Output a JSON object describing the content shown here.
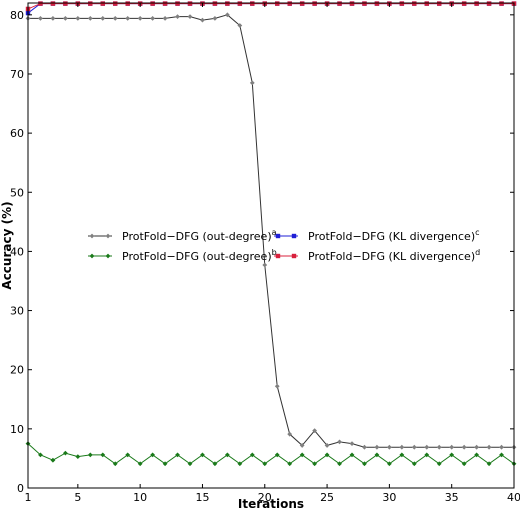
{
  "chart_data": {
    "type": "line",
    "xlabel": "Iterations",
    "ylabel": "Accuracy (%)",
    "xlim": [
      1,
      40
    ],
    "ylim": [
      0,
      82
    ],
    "xticks": [
      1,
      5,
      10,
      15,
      20,
      25,
      30,
      35,
      40
    ],
    "yticks": [
      0,
      10,
      20,
      30,
      40,
      50,
      60,
      70,
      80
    ],
    "grid": false,
    "legend_position": "center",
    "x": [
      1,
      2,
      3,
      4,
      5,
      6,
      7,
      8,
      9,
      10,
      11,
      12,
      13,
      14,
      15,
      16,
      17,
      18,
      19,
      20,
      21,
      22,
      23,
      24,
      25,
      26,
      27,
      28,
      29,
      30,
      31,
      32,
      33,
      34,
      35,
      36,
      37,
      38,
      39,
      40
    ],
    "series": [
      {
        "name": "ProtFold−DFG (out-degree)",
        "sup": "a",
        "color": "#808080",
        "line_color": "#333333",
        "marker": "diamond",
        "values": [
          79.4,
          79.4,
          79.4,
          79.4,
          79.4,
          79.4,
          79.4,
          79.4,
          79.4,
          79.4,
          79.4,
          79.4,
          79.7,
          79.7,
          79.1,
          79.4,
          80.0,
          78.2,
          68.5,
          37.7,
          17.2,
          9.1,
          7.2,
          9.7,
          7.2,
          7.8,
          7.5,
          6.9,
          6.9,
          6.9,
          6.9,
          6.9,
          6.9,
          6.9,
          6.9,
          6.9,
          6.9,
          6.9,
          6.9,
          6.9
        ]
      },
      {
        "name": "ProtFold−DFG (out-degree)",
        "sup": "b",
        "color": "#1a7a1a",
        "line_color": "#1a7a1a",
        "marker": "diamond",
        "values": [
          7.5,
          5.6,
          4.7,
          5.9,
          5.3,
          5.6,
          5.6,
          4.1,
          5.6,
          4.1,
          5.6,
          4.1,
          5.6,
          4.1,
          5.6,
          4.1,
          5.6,
          4.1,
          5.6,
          4.1,
          5.6,
          4.1,
          5.6,
          4.1,
          5.6,
          4.1,
          5.6,
          4.1,
          5.6,
          4.1,
          5.6,
          4.1,
          5.6,
          4.1,
          5.6,
          4.1,
          5.6,
          4.1,
          5.6,
          4.1
        ]
      },
      {
        "name": "ProtFold−DFG (KL divergence)",
        "sup": "c",
        "color": "#1f1fd6",
        "line_color": "#1f1fd6",
        "marker": "square",
        "values": [
          80.3,
          81.9,
          81.9,
          81.9,
          81.9,
          81.9,
          81.9,
          81.9,
          81.9,
          81.9,
          81.9,
          81.9,
          81.9,
          81.9,
          81.9,
          81.9,
          81.9,
          81.9,
          81.9,
          81.9,
          81.9,
          81.9,
          81.9,
          81.9,
          81.9,
          81.9,
          81.9,
          81.9,
          81.9,
          81.9,
          81.9,
          81.9,
          81.9,
          81.9,
          81.9,
          81.9,
          81.9,
          81.9,
          81.9,
          81.9
        ]
      },
      {
        "name": "ProtFold−DFG (KL divergence)",
        "sup": "d",
        "color": "#d8203c",
        "line_color": "#d8203c",
        "marker": "square",
        "values": [
          81.0,
          81.9,
          81.9,
          81.9,
          81.9,
          81.9,
          81.9,
          81.9,
          81.9,
          81.9,
          81.9,
          81.9,
          81.9,
          81.9,
          81.9,
          81.9,
          81.9,
          81.9,
          81.9,
          81.9,
          81.9,
          81.9,
          81.9,
          81.9,
          81.9,
          81.9,
          81.9,
          81.9,
          81.9,
          81.9,
          81.9,
          81.9,
          81.9,
          81.9,
          81.9,
          81.9,
          81.9,
          81.9,
          81.9,
          81.9
        ]
      }
    ]
  }
}
